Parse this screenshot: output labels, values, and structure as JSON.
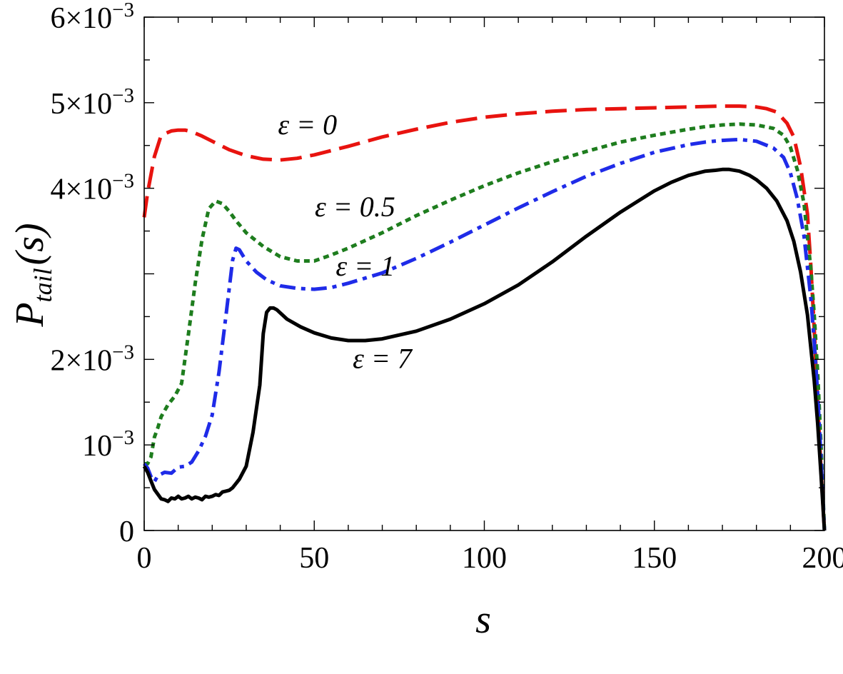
{
  "chart_data": {
    "type": "line",
    "title": "",
    "xlabel": "s",
    "ylabel": {
      "base": "P",
      "subscript": "tail",
      "argument": "(s)"
    },
    "xlim": [
      0,
      200
    ],
    "ylim": [
      0,
      0.006
    ],
    "x_ticks": [
      {
        "value": 0,
        "label": "0"
      },
      {
        "value": 50,
        "label": "50"
      },
      {
        "value": 100,
        "label": "100"
      },
      {
        "value": 150,
        "label": "150"
      },
      {
        "value": 200,
        "label": "200"
      }
    ],
    "y_ticks": [
      {
        "value": 0,
        "label": "0",
        "mantissa": "",
        "exponent": ""
      },
      {
        "value": 0.001,
        "label": "10−3",
        "mantissa": "",
        "exponent": "−3"
      },
      {
        "value": 0.002,
        "label": "2×10−3",
        "mantissa": "2×",
        "exponent": "−3"
      },
      {
        "value": 0.004,
        "label": "4×10−3",
        "mantissa": "4×",
        "exponent": "−3"
      },
      {
        "value": 0.005,
        "label": "5×10−3",
        "mantissa": "5×",
        "exponent": "−3"
      },
      {
        "value": 0.006,
        "label": "6×10−3",
        "mantissa": "6×",
        "exponent": "−3"
      }
    ],
    "grid": false,
    "series": [
      {
        "name": "ε = 0",
        "color": "#e8130f",
        "style": "long-dash",
        "x": [
          0,
          1,
          3,
          5,
          8,
          10,
          12,
          14,
          17,
          20,
          25,
          30,
          35,
          40,
          45,
          50,
          60,
          70,
          80,
          90,
          100,
          110,
          120,
          130,
          140,
          150,
          160,
          170,
          175,
          180,
          183,
          186,
          189,
          191,
          193,
          195,
          196,
          197,
          198,
          199,
          200
        ],
        "y": [
          0.00366,
          0.00395,
          0.00437,
          0.00462,
          0.00467,
          0.00468,
          0.00468,
          0.00466,
          0.00461,
          0.00455,
          0.00445,
          0.00438,
          0.00434,
          0.00433,
          0.00435,
          0.00439,
          0.00449,
          0.0046,
          0.00469,
          0.00477,
          0.00483,
          0.00487,
          0.0049,
          0.00492,
          0.00493,
          0.00494,
          0.00495,
          0.00496,
          0.00496,
          0.00495,
          0.00493,
          0.00489,
          0.00476,
          0.0046,
          0.00425,
          0.0037,
          0.0031,
          0.00235,
          0.0015,
          0.0007,
          0.0
        ]
      },
      {
        "name": "ε = 0.5",
        "color": "#1e7d1e",
        "style": "dotted",
        "x": [
          0,
          1,
          2,
          3,
          4,
          5,
          7,
          9,
          11,
          13,
          15,
          17,
          19,
          21,
          23,
          25,
          27,
          30,
          35,
          40,
          45,
          50,
          55,
          60,
          70,
          80,
          90,
          100,
          110,
          120,
          130,
          140,
          150,
          160,
          165,
          170,
          175,
          180,
          185,
          188,
          190,
          192,
          194,
          196,
          197,
          198,
          199,
          200
        ],
        "y": [
          0.00078,
          0.00078,
          0.00086,
          0.00109,
          0.0012,
          0.00133,
          0.00147,
          0.00157,
          0.00172,
          0.00229,
          0.00289,
          0.0034,
          0.00376,
          0.00385,
          0.00382,
          0.00373,
          0.00362,
          0.00348,
          0.00332,
          0.0032,
          0.00315,
          0.00315,
          0.00322,
          0.0033,
          0.00348,
          0.00368,
          0.00386,
          0.00403,
          0.00418,
          0.00431,
          0.00443,
          0.00454,
          0.00462,
          0.00469,
          0.00472,
          0.00474,
          0.00475,
          0.00474,
          0.0047,
          0.00462,
          0.00448,
          0.00422,
          0.00382,
          0.00306,
          0.00252,
          0.00185,
          0.001,
          0.0
        ]
      },
      {
        "name": "ε = 1",
        "color": "#1f2be8",
        "style": "dash-dot",
        "x": [
          0,
          1,
          2,
          3,
          4,
          6,
          8,
          10,
          12,
          14,
          16,
          18,
          20,
          22,
          24,
          26,
          27,
          28,
          30,
          33,
          36,
          40,
          45,
          50,
          55,
          60,
          70,
          80,
          90,
          100,
          110,
          120,
          130,
          140,
          150,
          160,
          165,
          170,
          175,
          180,
          185,
          188,
          190,
          192,
          194,
          196,
          197,
          198,
          199,
          200
        ],
        "y": [
          0.00078,
          0.00073,
          0.00063,
          0.00057,
          0.00064,
          0.00068,
          0.00067,
          0.00074,
          0.00075,
          0.0008,
          0.00093,
          0.0011,
          0.00135,
          0.00185,
          0.0025,
          0.00316,
          0.0033,
          0.00328,
          0.00315,
          0.00302,
          0.00293,
          0.00286,
          0.00283,
          0.00282,
          0.00284,
          0.00289,
          0.00301,
          0.00318,
          0.00337,
          0.00357,
          0.00377,
          0.00396,
          0.00414,
          0.00429,
          0.00442,
          0.00451,
          0.00454,
          0.00456,
          0.00457,
          0.00455,
          0.00447,
          0.00436,
          0.00418,
          0.00388,
          0.00344,
          0.00272,
          0.0022,
          0.0016,
          0.00085,
          0.0
        ]
      },
      {
        "name": "ε = 7",
        "color": "#000000",
        "style": "solid",
        "x": [
          0,
          1,
          2,
          3,
          5,
          6,
          7,
          8,
          9,
          10,
          11,
          12,
          13,
          14,
          15,
          16,
          17,
          18,
          19,
          20,
          21,
          22,
          23,
          24,
          25,
          26,
          27,
          28,
          30,
          32,
          34,
          35,
          36,
          37,
          38,
          39,
          42,
          46,
          50,
          55,
          60,
          65,
          70,
          80,
          90,
          100,
          110,
          120,
          130,
          140,
          150,
          155,
          160,
          165,
          168,
          170,
          172,
          175,
          178,
          180,
          183,
          186,
          189,
          191,
          193,
          195,
          197,
          198,
          199,
          200
        ],
        "y": [
          0.00075,
          0.00068,
          0.00058,
          0.00048,
          0.00037,
          0.00036,
          0.00034,
          0.00038,
          0.00037,
          0.0004,
          0.00037,
          0.00038,
          0.0004,
          0.00037,
          0.00039,
          0.00038,
          0.00036,
          0.0004,
          0.00039,
          0.0004,
          0.00042,
          0.00041,
          0.00045,
          0.00046,
          0.00047,
          0.0005,
          0.00055,
          0.0006,
          0.00075,
          0.00115,
          0.0017,
          0.0023,
          0.00255,
          0.0026,
          0.0026,
          0.00258,
          0.00247,
          0.00238,
          0.00231,
          0.00225,
          0.00222,
          0.00222,
          0.00224,
          0.00233,
          0.00247,
          0.00265,
          0.00287,
          0.00314,
          0.00344,
          0.00372,
          0.00397,
          0.00407,
          0.00415,
          0.0042,
          0.00421,
          0.00422,
          0.00422,
          0.0042,
          0.00415,
          0.0041,
          0.004,
          0.00385,
          0.00362,
          0.00338,
          0.00302,
          0.00252,
          0.00175,
          0.00125,
          0.00065,
          0.0
        ]
      }
    ],
    "annotations": [
      {
        "text": "ε = 0",
        "series": 0,
        "x": 48,
        "y": 0.00463,
        "anchor": "middle"
      },
      {
        "text": "ε = 0.5",
        "series": 1,
        "x": 62,
        "y": 0.00367,
        "anchor": "middle"
      },
      {
        "text": "ε = 1",
        "series": 2,
        "x": 65,
        "y": 0.00298,
        "anchor": "middle"
      },
      {
        "text": "ε = 7",
        "series": 3,
        "x": 70,
        "y": 0.0019,
        "anchor": "middle"
      }
    ]
  }
}
